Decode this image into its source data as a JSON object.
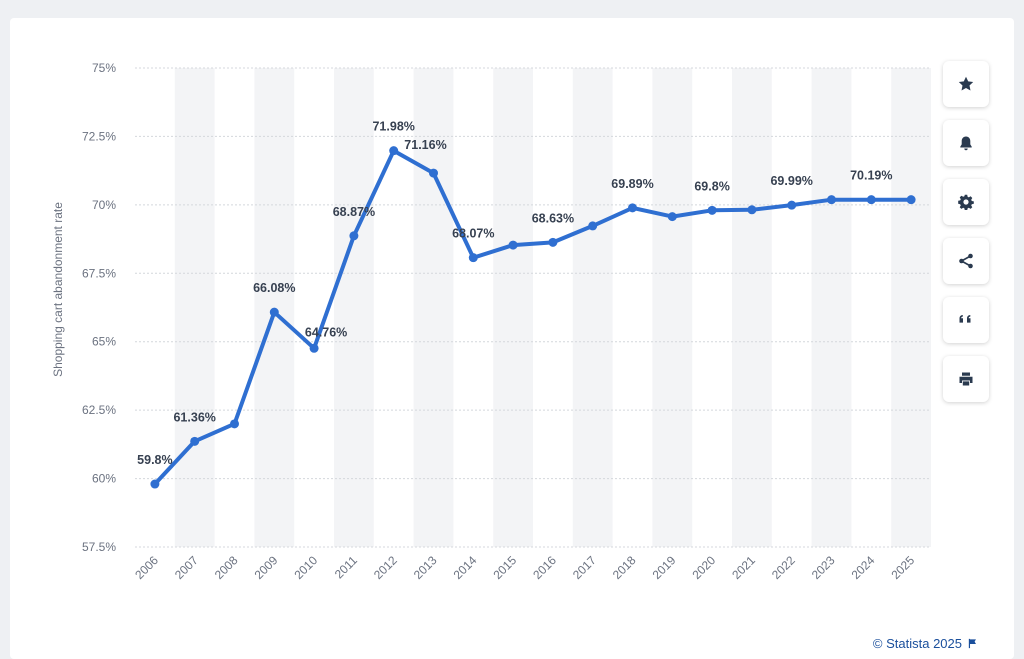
{
  "chart_data": {
    "type": "line",
    "title": "",
    "xlabel": "",
    "ylabel": "Shopping cart abandonment rate",
    "ylim": [
      57.5,
      75
    ],
    "yticks": [
      57.5,
      60,
      62.5,
      65,
      67.5,
      70,
      72.5,
      75
    ],
    "ytick_labels": [
      "57.5%",
      "60%",
      "62.5%",
      "65%",
      "67.5%",
      "70%",
      "72.5%",
      "75%"
    ],
    "categories": [
      "2006",
      "2007",
      "2008",
      "2009",
      "2010",
      "2011",
      "2012",
      "2013",
      "2014",
      "2015",
      "2016",
      "2017",
      "2018",
      "2019",
      "2020",
      "2021",
      "2022",
      "2023",
      "2024",
      "2025"
    ],
    "values": [
      59.8,
      61.36,
      62.0,
      66.08,
      64.76,
      68.87,
      71.98,
      71.16,
      68.07,
      68.53,
      68.63,
      69.23,
      69.89,
      69.57,
      69.8,
      69.82,
      69.99,
      70.19,
      70.19,
      70.19
    ],
    "data_labels": [
      "59.8%",
      "61.36%",
      "",
      "66.08%",
      "64.76%",
      "68.87%",
      "71.98%",
      "71.16%",
      "68.07%",
      "",
      "68.63%",
      "",
      "69.89%",
      "",
      "69.8%",
      "",
      "69.99%",
      "",
      "70.19%",
      ""
    ],
    "grid": true,
    "line_color": "#2f6fd1",
    "band_color": "#f3f4f6"
  },
  "toolbar": {
    "buttons": [
      {
        "icon": "star-icon"
      },
      {
        "icon": "bell-icon"
      },
      {
        "icon": "gear-icon"
      },
      {
        "icon": "share-icon"
      },
      {
        "icon": "quote-icon"
      },
      {
        "icon": "print-icon"
      }
    ]
  },
  "credit": {
    "text": "© Statista 2025"
  }
}
